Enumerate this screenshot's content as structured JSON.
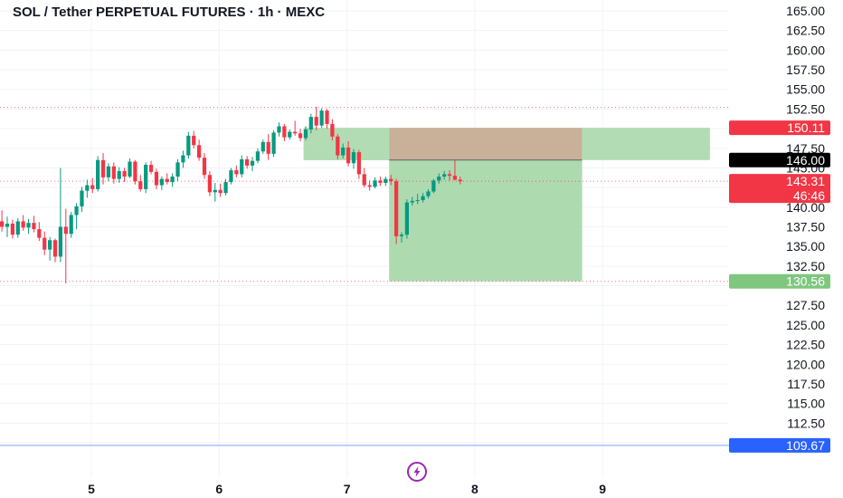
{
  "chart_data": {
    "type": "candlestick",
    "title": "SOL / Tether PERPETUAL FUTURES · 1h · MEXC",
    "ylim": [
      109.0,
      166.5
    ],
    "y_ticks": [
      "165.00",
      "162.50",
      "160.00",
      "157.50",
      "155.00",
      "152.50",
      "147.50",
      "145.00",
      "140.00",
      "137.50",
      "135.00",
      "132.50",
      "127.50",
      "125.00",
      "122.50",
      "120.00",
      "117.50",
      "115.00",
      "112.50"
    ],
    "x_ticks": [
      {
        "label": "5",
        "day": 5
      },
      {
        "label": "6",
        "day": 6
      },
      {
        "label": "7",
        "day": 7
      },
      {
        "label": "8",
        "day": 8
      },
      {
        "label": "9",
        "day": 9
      }
    ],
    "x_range_days": [
      4.3,
      9.97
    ],
    "price_badges": [
      {
        "value": 150.11,
        "label": "150.11",
        "color": "#f23645"
      },
      {
        "value": 146.0,
        "label": "146.00",
        "color": "#000000"
      },
      {
        "value": 143.31,
        "label": "143.31",
        "sublabel": "46:46",
        "color": "#f23645"
      },
      {
        "value": 130.56,
        "label": "130.56",
        "color": "#7fc77f"
      },
      {
        "value": 109.67,
        "label": "109.67",
        "color": "#2962ff"
      }
    ],
    "dotted_levels": [
      152.7,
      143.31,
      130.56
    ],
    "positions": [
      {
        "type": "short",
        "x0": 6.66,
        "x1": 7.33,
        "entry": 146.0,
        "top": 150.11,
        "bottom": 145.98,
        "profit_only": true
      },
      {
        "type": "short",
        "x0": 7.33,
        "x1": 8.84,
        "entry": 146.0,
        "stop": 150.11,
        "target": 130.56
      },
      {
        "type": "short",
        "x0": 8.84,
        "x1": 9.84,
        "entry": 146.0,
        "top": 150.11,
        "bottom": 146.0,
        "profit_only": true
      }
    ],
    "colors": {
      "up": "#089981",
      "down": "#f23645",
      "profit": "#a5d6a7",
      "loss": "#c6ac92",
      "grid": "#f0f3fa"
    },
    "candles_start_day": 4.3,
    "candle_step_days": 0.0417,
    "candles": [
      [
        138.2,
        139.6,
        136.9,
        137.5
      ],
      [
        137.5,
        138.8,
        136.2,
        137.9
      ],
      [
        137.9,
        138.4,
        136.0,
        136.5
      ],
      [
        136.5,
        138.6,
        136.1,
        138.2
      ],
      [
        138.2,
        139.0,
        137.0,
        137.4
      ],
      [
        137.4,
        138.5,
        136.6,
        138.0
      ],
      [
        138.0,
        138.9,
        136.8,
        137.2
      ],
      [
        137.2,
        138.1,
        135.7,
        136.1
      ],
      [
        136.1,
        136.9,
        133.9,
        134.6
      ],
      [
        134.6,
        136.2,
        133.2,
        135.8
      ],
      [
        135.8,
        136.0,
        133.0,
        133.7
      ],
      [
        133.7,
        145.0,
        133.0,
        137.5
      ],
      [
        137.5,
        139.8,
        130.3,
        136.6
      ],
      [
        136.6,
        139.4,
        136.1,
        139.0
      ],
      [
        139.0,
        140.5,
        137.2,
        140.1
      ],
      [
        140.1,
        142.6,
        139.4,
        142.1
      ],
      [
        142.1,
        143.5,
        141.2,
        142.8
      ],
      [
        142.8,
        143.7,
        141.8,
        142.3
      ],
      [
        142.3,
        146.5,
        142.0,
        146.0
      ],
      [
        146.0,
        146.9,
        142.9,
        143.8
      ],
      [
        143.8,
        145.6,
        143.3,
        145.2
      ],
      [
        145.2,
        145.7,
        143.0,
        143.6
      ],
      [
        143.6,
        145.1,
        143.1,
        144.6
      ],
      [
        144.6,
        145.0,
        143.2,
        143.9
      ],
      [
        143.9,
        146.2,
        143.7,
        145.8
      ],
      [
        145.8,
        146.0,
        142.9,
        143.3
      ],
      [
        143.3,
        144.1,
        142.0,
        142.3
      ],
      [
        142.3,
        145.7,
        141.8,
        145.4
      ],
      [
        145.4,
        145.9,
        144.2,
        144.5
      ],
      [
        144.5,
        144.9,
        142.3,
        142.8
      ],
      [
        142.8,
        143.9,
        142.2,
        143.6
      ],
      [
        143.6,
        144.3,
        142.9,
        143.2
      ],
      [
        143.2,
        144.3,
        142.6,
        143.9
      ],
      [
        143.9,
        146.1,
        143.3,
        145.7
      ],
      [
        145.7,
        147.2,
        145.0,
        146.6
      ],
      [
        146.6,
        149.6,
        146.2,
        149.1
      ],
      [
        149.1,
        149.7,
        147.5,
        147.9
      ],
      [
        147.9,
        148.6,
        145.9,
        146.3
      ],
      [
        146.3,
        146.9,
        143.6,
        144.1
      ],
      [
        144.1,
        144.6,
        141.4,
        141.9
      ],
      [
        141.9,
        143.1,
        140.7,
        142.2
      ],
      [
        142.2,
        143.0,
        141.3,
        141.8
      ],
      [
        141.8,
        143.6,
        141.5,
        143.2
      ],
      [
        143.2,
        145.0,
        142.9,
        144.7
      ],
      [
        144.7,
        145.3,
        143.8,
        144.2
      ],
      [
        144.2,
        146.6,
        143.8,
        146.1
      ],
      [
        146.1,
        146.5,
        144.9,
        145.3
      ],
      [
        145.3,
        146.4,
        144.6,
        145.9
      ],
      [
        145.9,
        147.5,
        145.6,
        147.1
      ],
      [
        147.1,
        148.6,
        146.8,
        148.3
      ],
      [
        148.3,
        149.3,
        146.0,
        146.8
      ],
      [
        146.8,
        149.8,
        146.4,
        149.5
      ],
      [
        149.5,
        150.8,
        149.0,
        150.3
      ],
      [
        150.3,
        150.6,
        148.4,
        148.9
      ],
      [
        148.9,
        149.9,
        148.6,
        149.6
      ],
      [
        149.6,
        151.0,
        149.1,
        149.4
      ],
      [
        149.4,
        150.0,
        148.4,
        148.8
      ],
      [
        148.8,
        150.3,
        148.5,
        149.9
      ],
      [
        149.9,
        151.9,
        149.4,
        151.5
      ],
      [
        151.5,
        152.8,
        149.8,
        150.4
      ],
      [
        150.4,
        152.6,
        150.1,
        152.3
      ],
      [
        152.3,
        152.5,
        150.0,
        150.6
      ],
      [
        150.6,
        151.2,
        148.5,
        149.0
      ],
      [
        149.0,
        149.3,
        146.1,
        146.6
      ],
      [
        146.6,
        148.1,
        146.2,
        147.6
      ],
      [
        147.6,
        148.4,
        145.2,
        145.6
      ],
      [
        145.6,
        147.4,
        144.9,
        147.0
      ],
      [
        147.0,
        147.3,
        143.6,
        144.2
      ],
      [
        144.2,
        145.0,
        142.5,
        142.8
      ],
      [
        142.8,
        143.4,
        142.1,
        142.6
      ],
      [
        142.6,
        143.8,
        142.4,
        143.4
      ],
      [
        143.4,
        143.9,
        142.7,
        143.1
      ],
      [
        143.1,
        143.9,
        142.7,
        143.6
      ],
      [
        143.6,
        144.1,
        142.8,
        143.3
      ],
      [
        143.3,
        143.6,
        135.3,
        136.3
      ],
      [
        136.3,
        136.8,
        135.5,
        136.5
      ],
      [
        136.5,
        141.0,
        136.0,
        140.6
      ],
      [
        140.6,
        141.3,
        140.2,
        140.8
      ],
      [
        140.8,
        141.7,
        140.4,
        140.9
      ],
      [
        140.9,
        141.8,
        140.6,
        141.4
      ],
      [
        141.4,
        142.3,
        141.1,
        142.0
      ],
      [
        142.0,
        143.6,
        141.8,
        143.4
      ],
      [
        143.4,
        144.3,
        143.0,
        143.9
      ],
      [
        143.9,
        144.6,
        143.5,
        144.2
      ],
      [
        144.2,
        144.7,
        143.4,
        144.0
      ],
      [
        144.0,
        146.0,
        143.4,
        143.5
      ],
      [
        143.5,
        143.9,
        142.9,
        143.3
      ]
    ]
  }
}
